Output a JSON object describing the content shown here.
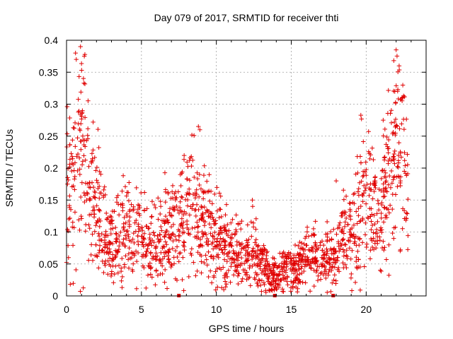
{
  "chart_data": {
    "type": "scatter",
    "title": "Day 079 of 2017, SRMTID for receiver thti",
    "xlabel": "GPS time / hours",
    "ylabel": "SRMTID / TECUs",
    "xlim": [
      0,
      24
    ],
    "ylim": [
      0,
      0.4
    ],
    "xticks": [
      "0",
      "5",
      "10",
      "15",
      "20"
    ],
    "xtick_values": [
      0,
      5,
      10,
      15,
      20
    ],
    "yticks": [
      "0",
      "0.05",
      "0.1",
      "0.15",
      "0.2",
      "0.25",
      "0.3",
      "0.35",
      "0.4"
    ],
    "ytick_values": [
      0,
      0.05,
      0.1,
      0.15,
      0.2,
      0.25,
      0.3,
      0.35,
      0.4
    ],
    "grid": true,
    "marker": "plus",
    "marker_color": "#e00000",
    "envelope_description_points": {
      "x": [
        0.0,
        0.5,
        1.0,
        1.5,
        2.0,
        2.5,
        3.0,
        4.0,
        5.0,
        6.0,
        7.0,
        8.0,
        8.5,
        9.0,
        10.0,
        11.0,
        12.0,
        12.5,
        13.0,
        13.5,
        14.0,
        14.5,
        15.0,
        16.0,
        17.0,
        17.5,
        18.0,
        18.5,
        19.0,
        19.5,
        20.0,
        20.5,
        21.0,
        21.5,
        22.0,
        22.5,
        22.8
      ],
      "y": [
        0.2,
        0.17,
        0.23,
        0.17,
        0.14,
        0.1,
        0.08,
        0.1,
        0.09,
        0.08,
        0.1,
        0.13,
        0.15,
        0.12,
        0.09,
        0.07,
        0.065,
        0.07,
        0.05,
        0.035,
        0.03,
        0.04,
        0.045,
        0.06,
        0.055,
        0.06,
        0.07,
        0.09,
        0.1,
        0.13,
        0.16,
        0.14,
        0.13,
        0.18,
        0.25,
        0.2,
        0.15
      ]
    },
    "outliers": [
      {
        "x": 0.6,
        "y": 0.38
      },
      {
        "x": 0.65,
        "y": 0.37
      },
      {
        "x": 8.8,
        "y": 0.265
      },
      {
        "x": 8.9,
        "y": 0.26
      },
      {
        "x": 22.0,
        "y": 0.385
      },
      {
        "x": 22.2,
        "y": 0.36
      },
      {
        "x": 18.0,
        "y": 0.18
      },
      {
        "x": 12.4,
        "y": 0.15
      }
    ],
    "zero_markers_x": [
      7.5,
      13.9,
      17.8
    ]
  }
}
